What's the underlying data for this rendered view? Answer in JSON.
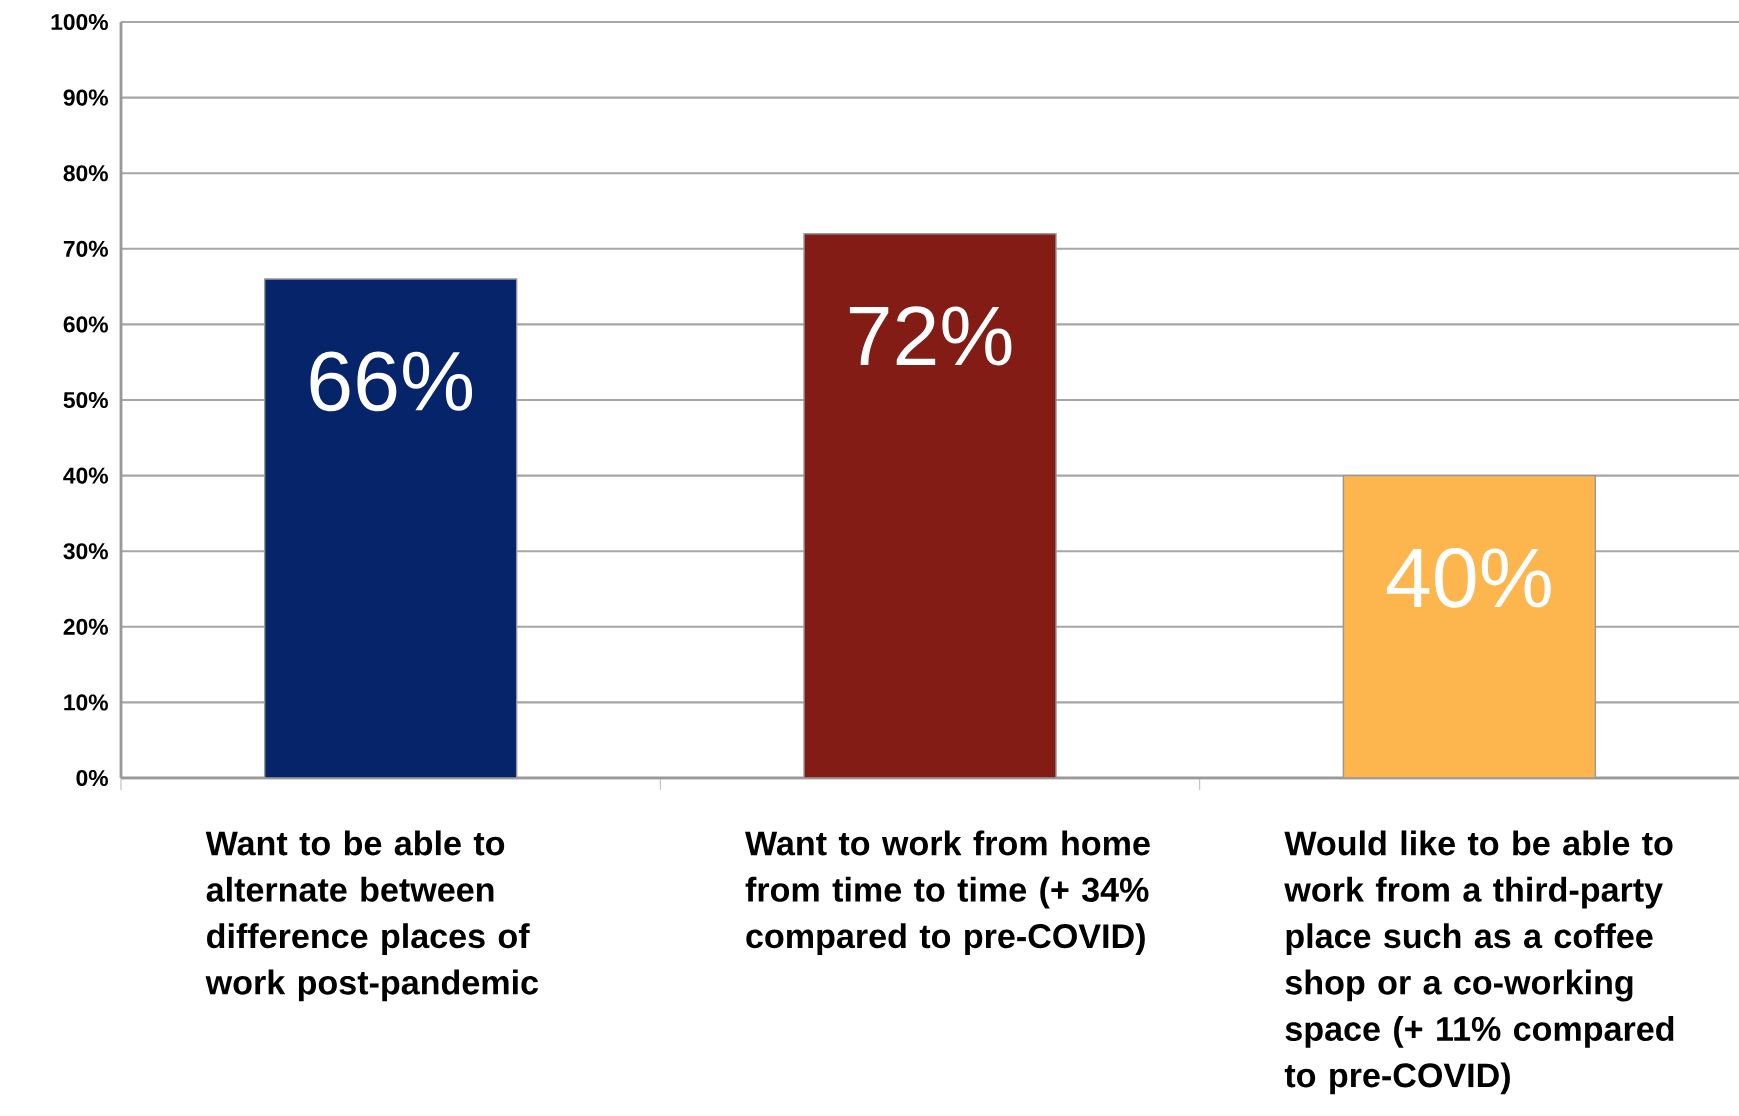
{
  "chart_data": {
    "type": "bar",
    "categories": [
      "Want to be able to alternate between difference places of work post-pandemic",
      "Want to work from home from time to time (+ 34% compared to pre-COVID)",
      "Would like to be able to work from a third-party place such as a coffee shop or a co-working space (+ 11% compared to pre-COVID)"
    ],
    "values": [
      66,
      72,
      40
    ],
    "colors": [
      "#06246a",
      "#841c16",
      "#fdb54e"
    ],
    "value_labels": [
      "66%",
      "72%",
      "40%"
    ],
    "ylim": [
      0,
      100
    ],
    "yticks": [
      {
        "value": 0,
        "label": "0%"
      },
      {
        "value": 10,
        "label": "10%"
      },
      {
        "value": 20,
        "label": "20%"
      },
      {
        "value": 30,
        "label": "30%"
      },
      {
        "value": 40,
        "label": "40%"
      },
      {
        "value": 50,
        "label": "50%"
      },
      {
        "value": 60,
        "label": "60%"
      },
      {
        "value": 70,
        "label": "70%"
      },
      {
        "value": 80,
        "label": "80%"
      },
      {
        "value": 90,
        "label": "90%"
      },
      {
        "value": 100,
        "label": "100%"
      }
    ],
    "grid": "y"
  }
}
